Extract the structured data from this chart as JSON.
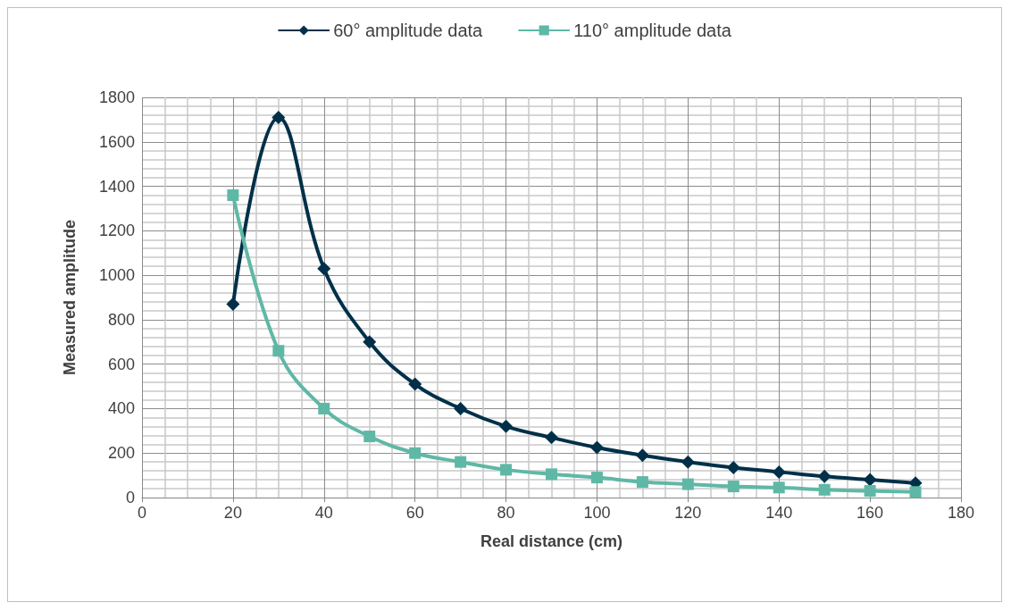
{
  "chart_data": {
    "type": "line",
    "xlabel": "Real distance (cm)",
    "ylabel": "Measured amplitude",
    "x": [
      20,
      30,
      40,
      50,
      60,
      70,
      80,
      90,
      100,
      110,
      120,
      130,
      140,
      150,
      160,
      170
    ],
    "series": [
      {
        "name": "60° amplitude data",
        "color": "#003049",
        "marker": "diamond",
        "values": [
          870,
          1710,
          1030,
          700,
          510,
          400,
          320,
          270,
          225,
          190,
          160,
          135,
          115,
          95,
          80,
          65
        ]
      },
      {
        "name": "110° amplitude data",
        "color": "#5fb8a6",
        "marker": "square",
        "values": [
          1360,
          660,
          400,
          275,
          200,
          160,
          125,
          105,
          90,
          70,
          60,
          50,
          45,
          35,
          30,
          25
        ]
      }
    ],
    "xlim": [
      0,
      180
    ],
    "xticks": [
      0,
      20,
      40,
      60,
      80,
      100,
      120,
      140,
      160,
      180
    ],
    "ylim": [
      0,
      1800
    ],
    "yticks": [
      0,
      200,
      400,
      600,
      800,
      1000,
      1200,
      1400,
      1600,
      1800
    ],
    "grid": true,
    "legend": "top",
    "line_style": "solid"
  }
}
